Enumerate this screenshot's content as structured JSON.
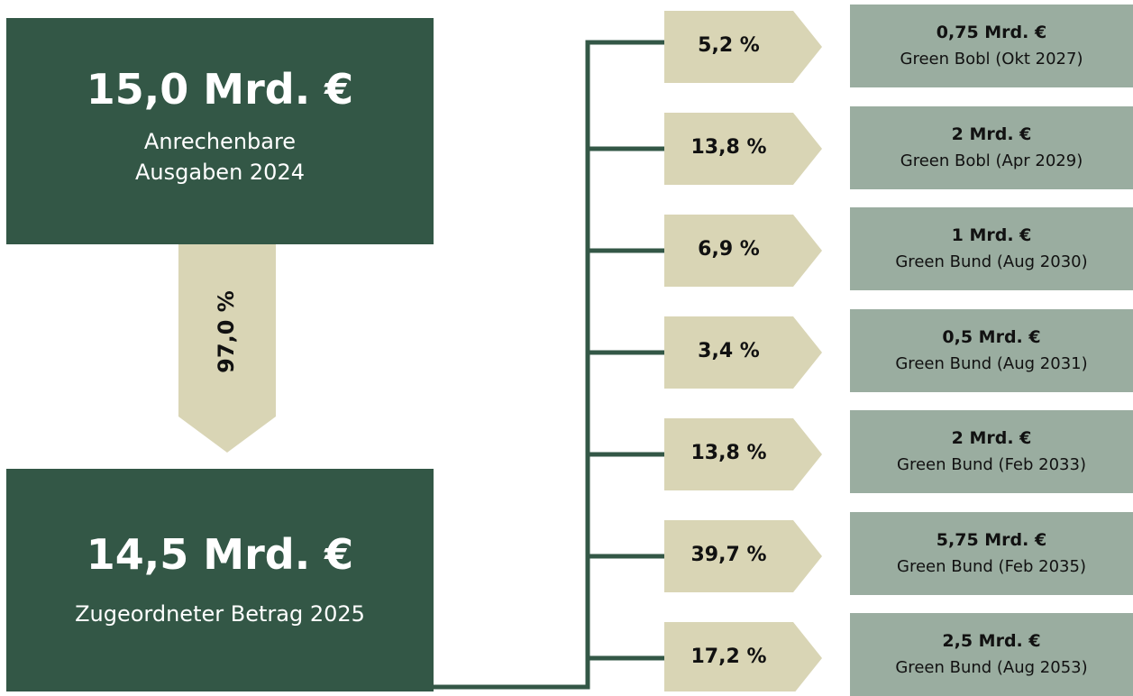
{
  "source": {
    "amount": "15,0 Mrd. €",
    "label_lines": [
      "Anrechenbare",
      "Ausgaben 2024"
    ]
  },
  "share": "97,0 %",
  "allocated": {
    "amount": "14,5 Mrd. €",
    "label": "Zugeordneter Betrag  2025"
  },
  "bonds": [
    {
      "percent": "5,2 %",
      "amount": "0,75 Mrd. €",
      "name": "Green Bobl (Okt 2027)"
    },
    {
      "percent": "13,8 %",
      "amount": "2 Mrd. €",
      "name": "Green Bobl (Apr 2029)"
    },
    {
      "percent": "6,9 %",
      "amount": "1 Mrd. €",
      "name": "Green Bund (Aug 2030)"
    },
    {
      "percent": "3,4 %",
      "amount": "0,5 Mrd. €",
      "name": "Green Bund (Aug 2031)"
    },
    {
      "percent": "13,8 %",
      "amount": "2 Mrd. €",
      "name": "Green Bund (Feb 2033)"
    },
    {
      "percent": "39,7 %",
      "amount": "5,75 Mrd. €",
      "name": "Green Bund (Feb 2035)"
    },
    {
      "percent": "17,2 %",
      "amount": "2,5 Mrd. €",
      "name": "Green Bund (Aug 2053)"
    }
  ]
}
